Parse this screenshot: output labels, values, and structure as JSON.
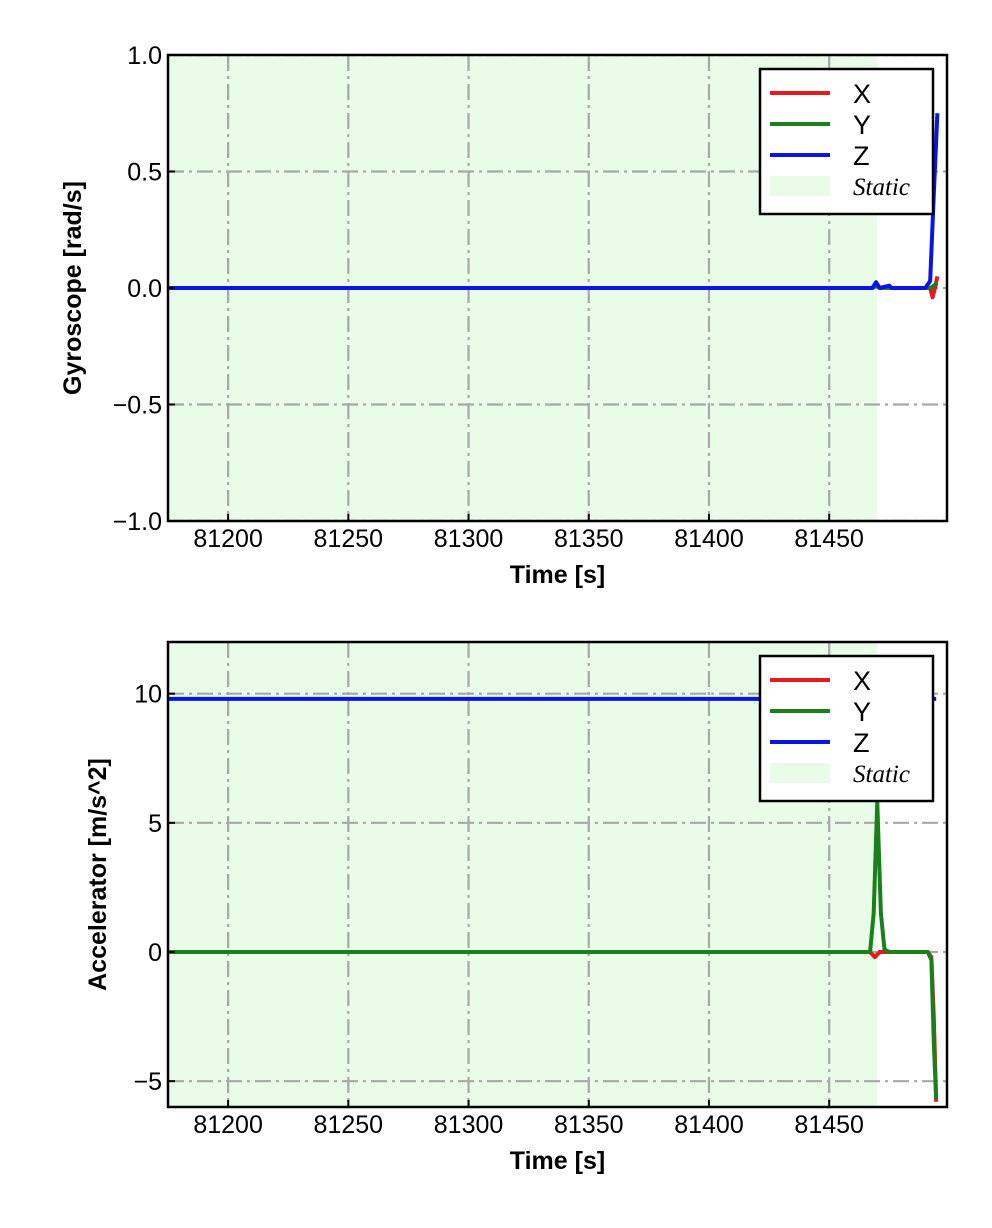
{
  "chart_data": [
    {
      "type": "line",
      "title": "",
      "xlabel": "Time [s]",
      "ylabel": "Gyroscope [rad/s]",
      "xlim": [
        81175,
        81499
      ],
      "ylim": [
        -1.0,
        1.0
      ],
      "xticks": [
        81200,
        81250,
        81300,
        81350,
        81400,
        81450
      ],
      "xtick_labels": [
        "81200",
        "81250",
        "81300",
        "81350",
        "81400",
        "81450"
      ],
      "yticks": [
        -1.0,
        -0.5,
        0.0,
        0.5,
        1.0
      ],
      "ytick_labels": [
        "−1.0",
        "−0.5",
        "0.0",
        "0.5",
        "1.0"
      ],
      "grid": true,
      "legend_position": "top-right",
      "static_region": {
        "label": "Static",
        "x_start": 81175,
        "x_end": 81470,
        "color": "#e8fce8"
      },
      "series": [
        {
          "name": "X",
          "color": "#e41a1c",
          "points": [
            [
              81175,
              0.0
            ],
            [
              81468,
              0.0
            ],
            [
              81469.5,
              0.015
            ],
            [
              81471,
              0.0
            ],
            [
              81475,
              0.005
            ],
            [
              81476,
              0.0
            ],
            [
              81492,
              0.0
            ],
            [
              81493,
              -0.04
            ],
            [
              81494,
              0.0
            ],
            [
              81495,
              0.05
            ]
          ]
        },
        {
          "name": "Y",
          "color": "#1a801a",
          "points": [
            [
              81175,
              0.0
            ],
            [
              81468,
              0.0
            ],
            [
              81469.5,
              0.01
            ],
            [
              81471,
              0.0
            ],
            [
              81492,
              0.0
            ],
            [
              81495,
              0.02
            ]
          ]
        },
        {
          "name": "Z",
          "color": "#0a14e6",
          "points": [
            [
              81175,
              0.0
            ],
            [
              81468,
              0.0
            ],
            [
              81469.5,
              0.025
            ],
            [
              81471,
              0.0
            ],
            [
              81475,
              0.01
            ],
            [
              81476,
              0.0
            ],
            [
              81490,
              0.0
            ],
            [
              81492,
              0.03
            ],
            [
              81493.5,
              0.4
            ],
            [
              81495,
              0.75
            ]
          ]
        }
      ]
    },
    {
      "type": "line",
      "title": "",
      "xlabel": "Time [s]",
      "ylabel": "Accelerator [m/s^2]",
      "xlim": [
        81175,
        81499
      ],
      "ylim": [
        -6.0,
        12.0
      ],
      "xticks": [
        81200,
        81250,
        81300,
        81350,
        81400,
        81450
      ],
      "xtick_labels": [
        "81200",
        "81250",
        "81300",
        "81350",
        "81400",
        "81450"
      ],
      "yticks": [
        -5,
        0,
        5,
        10
      ],
      "ytick_labels": [
        "−5",
        "0",
        "5",
        "10"
      ],
      "grid": true,
      "legend_position": "top-right",
      "static_region": {
        "label": "Static",
        "x_start": 81175,
        "x_end": 81470,
        "color": "#e8fce8"
      },
      "series": [
        {
          "name": "X",
          "color": "#e41a1c",
          "points": [
            [
              81175,
              0.0
            ],
            [
              81467,
              0.0
            ],
            [
              81469,
              -0.2
            ],
            [
              81471,
              0.0
            ],
            [
              81491,
              0.0
            ],
            [
              81492.5,
              -0.2
            ],
            [
              81493.5,
              -2.5
            ],
            [
              81494.5,
              -5.8
            ]
          ]
        },
        {
          "name": "Y",
          "color": "#1a801a",
          "points": [
            [
              81175,
              0.0
            ],
            [
              81467,
              0.0
            ],
            [
              81468.5,
              1.5
            ],
            [
              81470,
              5.8
            ],
            [
              81471.5,
              1.5
            ],
            [
              81473,
              0.1
            ],
            [
              81475,
              0.0
            ],
            [
              81491,
              0.0
            ],
            [
              81492.5,
              -0.3
            ],
            [
              81493.5,
              -3.5
            ],
            [
              81494.5,
              -5.7
            ]
          ]
        },
        {
          "name": "Z",
          "color": "#0a14e6",
          "points": [
            [
              81175,
              9.8
            ],
            [
              81469,
              9.8
            ],
            [
              81470,
              9.6
            ],
            [
              81471,
              9.8
            ],
            [
              81494.5,
              9.8
            ]
          ]
        }
      ]
    }
  ]
}
